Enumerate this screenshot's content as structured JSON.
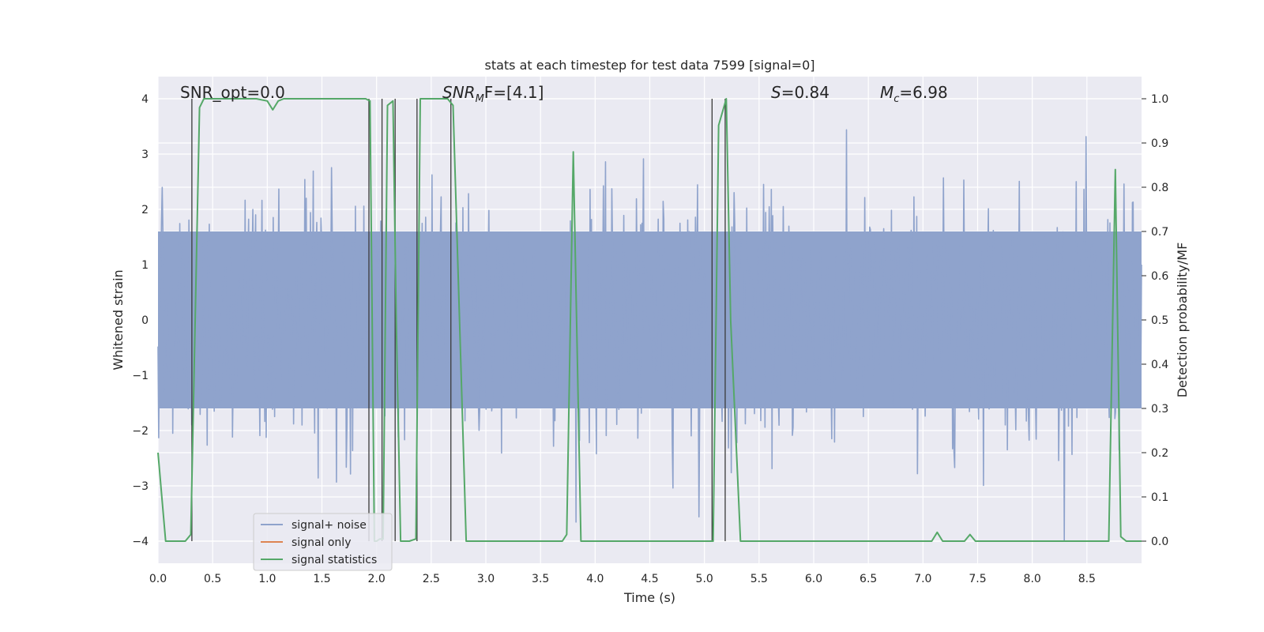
{
  "chart_data": {
    "type": "line",
    "title": "stats at each timestep for test data 7599 [signal=0]",
    "xlabel": "Time (s)",
    "ylabel_left": "Whitened strain",
    "ylabel_right": "Detection probability/MF",
    "xlim": [
      0.0,
      9.0
    ],
    "ylim_left": [
      -4.4,
      4.4
    ],
    "ylim_right": [
      -0.05,
      1.05
    ],
    "x_ticks": [
      "0.0",
      "0.5",
      "1.0",
      "1.5",
      "2.0",
      "2.5",
      "3.0",
      "3.5",
      "4.0",
      "4.5",
      "5.0",
      "5.5",
      "6.0",
      "6.5",
      "7.0",
      "7.5",
      "8.0",
      "8.5"
    ],
    "y_left_ticks": [
      "−4",
      "−3",
      "−2",
      "−1",
      "0",
      "1",
      "2",
      "3",
      "4"
    ],
    "y_right_ticks": [
      "0.0",
      "0.1",
      "0.2",
      "0.3",
      "0.4",
      "0.5",
      "0.6",
      "0.7",
      "0.8",
      "0.9",
      "1.0"
    ],
    "grid": true,
    "legend_position": "lower-left",
    "annotations": {
      "snr_opt": "SNR_opt=0.0",
      "snr_mf_symbol": "SNR",
      "snr_mf_sub": "M",
      "snr_mf_rest": "F=[4.1]",
      "s_symbol": "S",
      "s_rest": "=0.84",
      "mc_symbol": "M",
      "mc_sub": "c",
      "mc_rest": "=6.98"
    },
    "series": [
      {
        "name": "signal+ noise",
        "color": "#8fa3cc",
        "kind": "noise",
        "typical_abs_range": [
          0.0,
          1.6
        ],
        "envelope_max_abs": 4.0
      },
      {
        "name": "signal only",
        "color": "#dd8452",
        "x": [],
        "y": []
      },
      {
        "name": "signal statistics",
        "color": "#55a868",
        "axis": "right",
        "x": [
          0.0,
          0.07,
          0.25,
          0.3,
          0.38,
          0.42,
          0.9,
          1.0,
          1.05,
          1.1,
          1.15,
          1.2,
          1.9,
          1.94,
          1.98,
          2.0,
          2.03,
          2.06,
          2.1,
          2.15,
          2.18,
          2.22,
          2.3,
          2.36,
          2.4,
          2.45,
          2.65,
          2.7,
          2.82,
          3.7,
          3.74,
          3.8,
          3.87,
          5.08,
          5.13,
          5.2,
          5.24,
          5.33,
          7.08,
          7.13,
          7.18,
          7.38,
          7.43,
          7.48,
          8.7,
          8.76,
          8.81,
          8.86,
          9.0
        ],
        "y": [
          0.2,
          0.0,
          0.0,
          0.015,
          0.98,
          1.0,
          1.0,
          0.995,
          0.975,
          0.995,
          1.0,
          1.0,
          1.0,
          0.995,
          0.0,
          0.0,
          0.005,
          0.005,
          0.985,
          0.995,
          0.5,
          0.0,
          0.0,
          0.005,
          1.0,
          1.0,
          1.0,
          0.985,
          0.0,
          0.0,
          0.015,
          0.88,
          0.0,
          0.0,
          0.94,
          1.0,
          0.5,
          0.0,
          0.0,
          0.02,
          0.0,
          0.0,
          0.015,
          0.0,
          0.0,
          0.84,
          0.01,
          0.0,
          0.0
        ]
      }
    ],
    "vertical_markers_x": [
      0.31,
      1.93,
      2.05,
      2.17,
      2.37,
      2.68,
      5.07,
      5.19
    ]
  }
}
